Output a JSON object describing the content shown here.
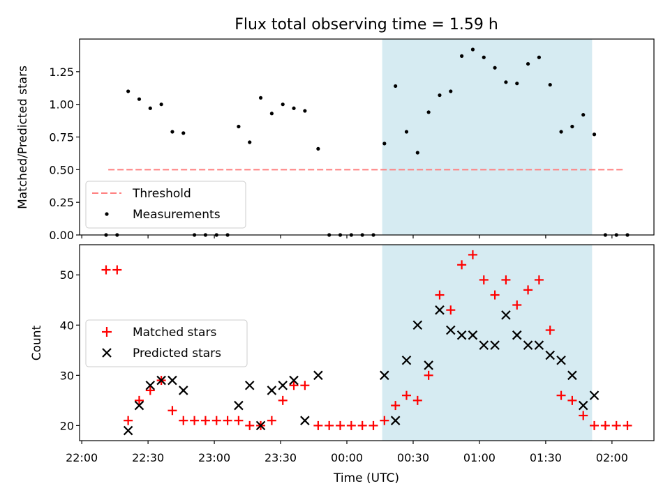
{
  "title": "Flux total observing time = 1.59 h",
  "colors": {
    "highlight": "#add8e6",
    "threshold": "#ff7f7f",
    "measurement": "#000000",
    "matched": "#ff0000",
    "predicted": "#000000"
  },
  "chart_data": [
    {
      "type": "scatter",
      "ylabel": "Matched/Predicted stars",
      "xlim": [
        "21:59",
        "02:19"
      ],
      "ylim": [
        0,
        1.5
      ],
      "yticks": [
        "0.00",
        "0.25",
        "0.50",
        "0.75",
        "1.00",
        "1.25"
      ],
      "highlight_span": [
        "00:16",
        "01:51"
      ],
      "legend": {
        "position": "lower-left",
        "entries": [
          "Threshold",
          "Measurements"
        ]
      },
      "threshold": {
        "name": "Threshold",
        "value": 0.5,
        "x_range": [
          "22:12",
          "02:06"
        ]
      },
      "series": [
        {
          "name": "Measurements",
          "marker": "dot",
          "points": [
            [
              "22:11",
              0.0
            ],
            [
              "22:16",
              0.0
            ],
            [
              "22:21",
              1.1
            ],
            [
              "22:26",
              1.04
            ],
            [
              "22:31",
              0.97
            ],
            [
              "22:36",
              1.0
            ],
            [
              "22:41",
              0.79
            ],
            [
              "22:46",
              0.78
            ],
            [
              "22:51",
              0.0
            ],
            [
              "22:56",
              0.0
            ],
            [
              "23:01",
              0.0
            ],
            [
              "23:06",
              0.0
            ],
            [
              "23:11",
              0.83
            ],
            [
              "23:16",
              0.71
            ],
            [
              "23:21",
              1.05
            ],
            [
              "23:26",
              0.93
            ],
            [
              "23:31",
              1.0
            ],
            [
              "23:36",
              0.97
            ],
            [
              "23:41",
              0.95
            ],
            [
              "23:47",
              0.66
            ],
            [
              "23:52",
              0.0
            ],
            [
              "23:57",
              0.0
            ],
            [
              "00:02",
              0.0
            ],
            [
              "00:07",
              0.0
            ],
            [
              "00:12",
              0.0
            ],
            [
              "00:17",
              0.7
            ],
            [
              "00:22",
              1.14
            ],
            [
              "00:27",
              0.79
            ],
            [
              "00:32",
              0.63
            ],
            [
              "00:37",
              0.94
            ],
            [
              "00:42",
              1.07
            ],
            [
              "00:47",
              1.1
            ],
            [
              "00:52",
              1.37
            ],
            [
              "00:57",
              1.42
            ],
            [
              "01:02",
              1.36
            ],
            [
              "01:07",
              1.28
            ],
            [
              "01:12",
              1.17
            ],
            [
              "01:17",
              1.16
            ],
            [
              "01:22",
              1.31
            ],
            [
              "01:27",
              1.36
            ],
            [
              "01:32",
              1.15
            ],
            [
              "01:37",
              0.79
            ],
            [
              "01:42",
              0.83
            ],
            [
              "01:47",
              0.92
            ],
            [
              "01:52",
              0.77
            ],
            [
              "01:57",
              0.0
            ],
            [
              "02:02",
              0.0
            ],
            [
              "02:07",
              0.0
            ]
          ]
        }
      ]
    },
    {
      "type": "scatter",
      "xlabel": "Time (UTC)",
      "ylabel": "Count",
      "xlim": [
        "21:59",
        "02:19"
      ],
      "ylim": [
        17,
        56
      ],
      "xticks": [
        "22:00",
        "22:30",
        "23:00",
        "23:30",
        "00:00",
        "00:30",
        "01:00",
        "01:30",
        "02:00"
      ],
      "yticks": [
        "20",
        "30",
        "40",
        "50"
      ],
      "highlight_span": [
        "00:16",
        "01:51"
      ],
      "legend": {
        "position": "center-left",
        "entries": [
          "Matched stars",
          "Predicted stars"
        ]
      },
      "series": [
        {
          "name": "Matched stars",
          "marker": "plus",
          "points": [
            [
              "22:11",
              51
            ],
            [
              "22:16",
              51
            ],
            [
              "22:21",
              21
            ],
            [
              "22:26",
              25
            ],
            [
              "22:31",
              27
            ],
            [
              "22:36",
              29
            ],
            [
              "22:41",
              23
            ],
            [
              "22:46",
              21
            ],
            [
              "22:51",
              21
            ],
            [
              "22:56",
              21
            ],
            [
              "23:01",
              21
            ],
            [
              "23:06",
              21
            ],
            [
              "23:11",
              21
            ],
            [
              "23:16",
              20
            ],
            [
              "23:21",
              20
            ],
            [
              "23:26",
              21
            ],
            [
              "23:31",
              25
            ],
            [
              "23:36",
              28
            ],
            [
              "23:41",
              28
            ],
            [
              "23:47",
              20
            ],
            [
              "23:52",
              20
            ],
            [
              "23:57",
              20
            ],
            [
              "00:02",
              20
            ],
            [
              "00:07",
              20
            ],
            [
              "00:12",
              20
            ],
            [
              "00:17",
              21
            ],
            [
              "00:22",
              24
            ],
            [
              "00:27",
              26
            ],
            [
              "00:32",
              25
            ],
            [
              "00:37",
              30
            ],
            [
              "00:42",
              46
            ],
            [
              "00:47",
              43
            ],
            [
              "00:52",
              52
            ],
            [
              "00:57",
              54
            ],
            [
              "01:02",
              49
            ],
            [
              "01:07",
              46
            ],
            [
              "01:12",
              49
            ],
            [
              "01:17",
              44
            ],
            [
              "01:22",
              47
            ],
            [
              "01:27",
              49
            ],
            [
              "01:32",
              39
            ],
            [
              "01:37",
              26
            ],
            [
              "01:42",
              25
            ],
            [
              "01:47",
              22
            ],
            [
              "01:52",
              20
            ],
            [
              "01:57",
              20
            ],
            [
              "02:02",
              20
            ],
            [
              "02:07",
              20
            ]
          ]
        },
        {
          "name": "Predicted stars",
          "marker": "x",
          "points": [
            [
              "22:21",
              19
            ],
            [
              "22:26",
              24
            ],
            [
              "22:31",
              28
            ],
            [
              "22:36",
              29
            ],
            [
              "22:41",
              29
            ],
            [
              "22:46",
              27
            ],
            [
              "23:11",
              24
            ],
            [
              "23:16",
              28
            ],
            [
              "23:21",
              20
            ],
            [
              "23:26",
              27
            ],
            [
              "23:31",
              28
            ],
            [
              "23:36",
              29
            ],
            [
              "23:41",
              21
            ],
            [
              "23:47",
              30
            ],
            [
              "00:17",
              30
            ],
            [
              "00:22",
              21
            ],
            [
              "00:27",
              33
            ],
            [
              "00:32",
              40
            ],
            [
              "00:37",
              32
            ],
            [
              "00:42",
              43
            ],
            [
              "00:47",
              39
            ],
            [
              "00:52",
              38
            ],
            [
              "00:57",
              38
            ],
            [
              "01:02",
              36
            ],
            [
              "01:07",
              36
            ],
            [
              "01:12",
              42
            ],
            [
              "01:17",
              38
            ],
            [
              "01:22",
              36
            ],
            [
              "01:27",
              36
            ],
            [
              "01:32",
              34
            ],
            [
              "01:37",
              33
            ],
            [
              "01:42",
              30
            ],
            [
              "01:47",
              24
            ],
            [
              "01:52",
              26
            ]
          ]
        }
      ]
    }
  ]
}
